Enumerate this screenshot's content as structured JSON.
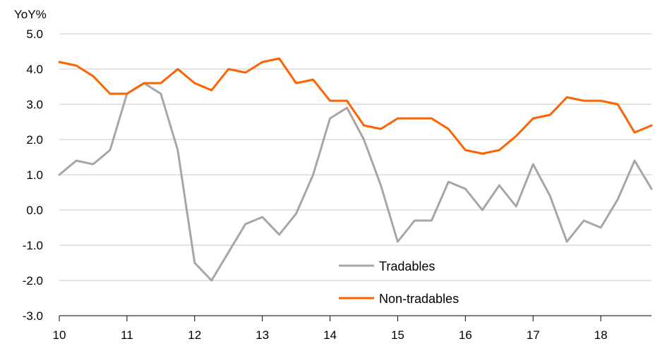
{
  "chart_data": {
    "type": "line",
    "ylabel": "YoY%",
    "ylim": [
      -3.0,
      5.0
    ],
    "y_ticks": [
      "5.0",
      "4.0",
      "3.0",
      "2.0",
      "1.0",
      "0.0",
      "-1.0",
      "-2.0",
      "-3.0"
    ],
    "x_tick_labels": [
      "10",
      "11",
      "12",
      "13",
      "14",
      "15",
      "16",
      "17",
      "18"
    ],
    "grid": "horizontal",
    "legend_position": "bottom-center",
    "x": [
      2010.0,
      2010.25,
      2010.5,
      2010.75,
      2011.0,
      2011.25,
      2011.5,
      2011.75,
      2012.0,
      2012.25,
      2012.5,
      2012.75,
      2013.0,
      2013.25,
      2013.5,
      2013.75,
      2014.0,
      2014.25,
      2014.5,
      2014.75,
      2015.0,
      2015.25,
      2015.5,
      2015.75,
      2016.0,
      2016.25,
      2016.5,
      2016.75,
      2017.0,
      2017.25,
      2017.5,
      2017.75,
      2018.0,
      2018.25,
      2018.5,
      2018.75
    ],
    "series": [
      {
        "name": "Tradables",
        "color": "#a6a6a6",
        "values": [
          1.0,
          1.4,
          1.3,
          1.7,
          3.3,
          3.6,
          3.3,
          1.7,
          -1.5,
          -2.0,
          -1.2,
          -0.4,
          -0.2,
          -0.7,
          -0.1,
          1.0,
          2.6,
          2.9,
          2.0,
          0.7,
          -0.9,
          -0.3,
          -0.3,
          0.8,
          0.6,
          0.0,
          0.7,
          0.1,
          1.3,
          0.4,
          -0.9,
          -0.3,
          -0.5,
          0.3,
          1.4,
          0.6
        ]
      },
      {
        "name": "Non-tradables",
        "color": "#ff6200",
        "values": [
          4.2,
          4.1,
          3.8,
          3.3,
          3.3,
          3.6,
          3.6,
          4.0,
          3.6,
          3.4,
          4.0,
          3.9,
          4.2,
          4.3,
          3.6,
          3.7,
          3.1,
          3.1,
          2.4,
          2.3,
          2.6,
          2.6,
          2.6,
          2.3,
          1.7,
          1.6,
          1.7,
          2.1,
          2.6,
          2.7,
          3.2,
          3.1,
          3.1,
          3.0,
          2.2,
          2.4
        ]
      }
    ]
  }
}
